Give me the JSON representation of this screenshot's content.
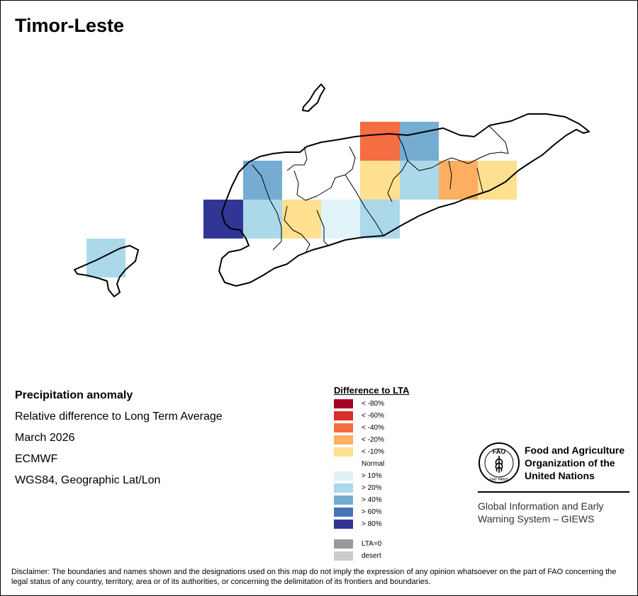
{
  "map": {
    "title": "Timor-Leste",
    "info": {
      "heading": "Precipitation anomaly",
      "subtitle": "Relative difference to Long Term Average",
      "period": "March 2026",
      "source": "ECMWF",
      "projection": "WGS84, Geographic Lat/Lon"
    },
    "legend": {
      "title": "Difference to LTA",
      "items": [
        {
          "label": "< -80%",
          "color": "#a50026"
        },
        {
          "label": "< -60%",
          "color": "#d73027"
        },
        {
          "label": "< -40%",
          "color": "#f46d43"
        },
        {
          "label": "< -20%",
          "color": "#fdae61"
        },
        {
          "label": "< -10%",
          "color": "#fee090"
        },
        {
          "label": "Normal",
          "color": "#ffffff"
        },
        {
          "label": "> 10%",
          "color": "#e0f3f8"
        },
        {
          "label": "> 20%",
          "color": "#abd9e9"
        },
        {
          "label": "> 40%",
          "color": "#74add1"
        },
        {
          "label": "> 60%",
          "color": "#4575b4"
        },
        {
          "label": "> 80%",
          "color": "#313695"
        }
      ],
      "extra": [
        {
          "label": "LTA=0",
          "color": "#999999"
        },
        {
          "label": "desert",
          "color": "#cccccc"
        }
      ]
    },
    "fao": {
      "name": "Food and Agriculture\nOrganization of the\nUnited Nations",
      "logo_top": "FAO",
      "logo_motto": "FIAT PANIS",
      "giews": "Global Information and Early\nWarning System – GIEWS"
    },
    "disclaimer": "Disclaimer: The boundaries and names shown and the designations used on this map do not imply the expression of any opinion whatsoever on the part of FAO concerning the legal status of any country, territory, area or of its authorities, or concerning the delimitation of its frontiers and boundaries."
  }
}
